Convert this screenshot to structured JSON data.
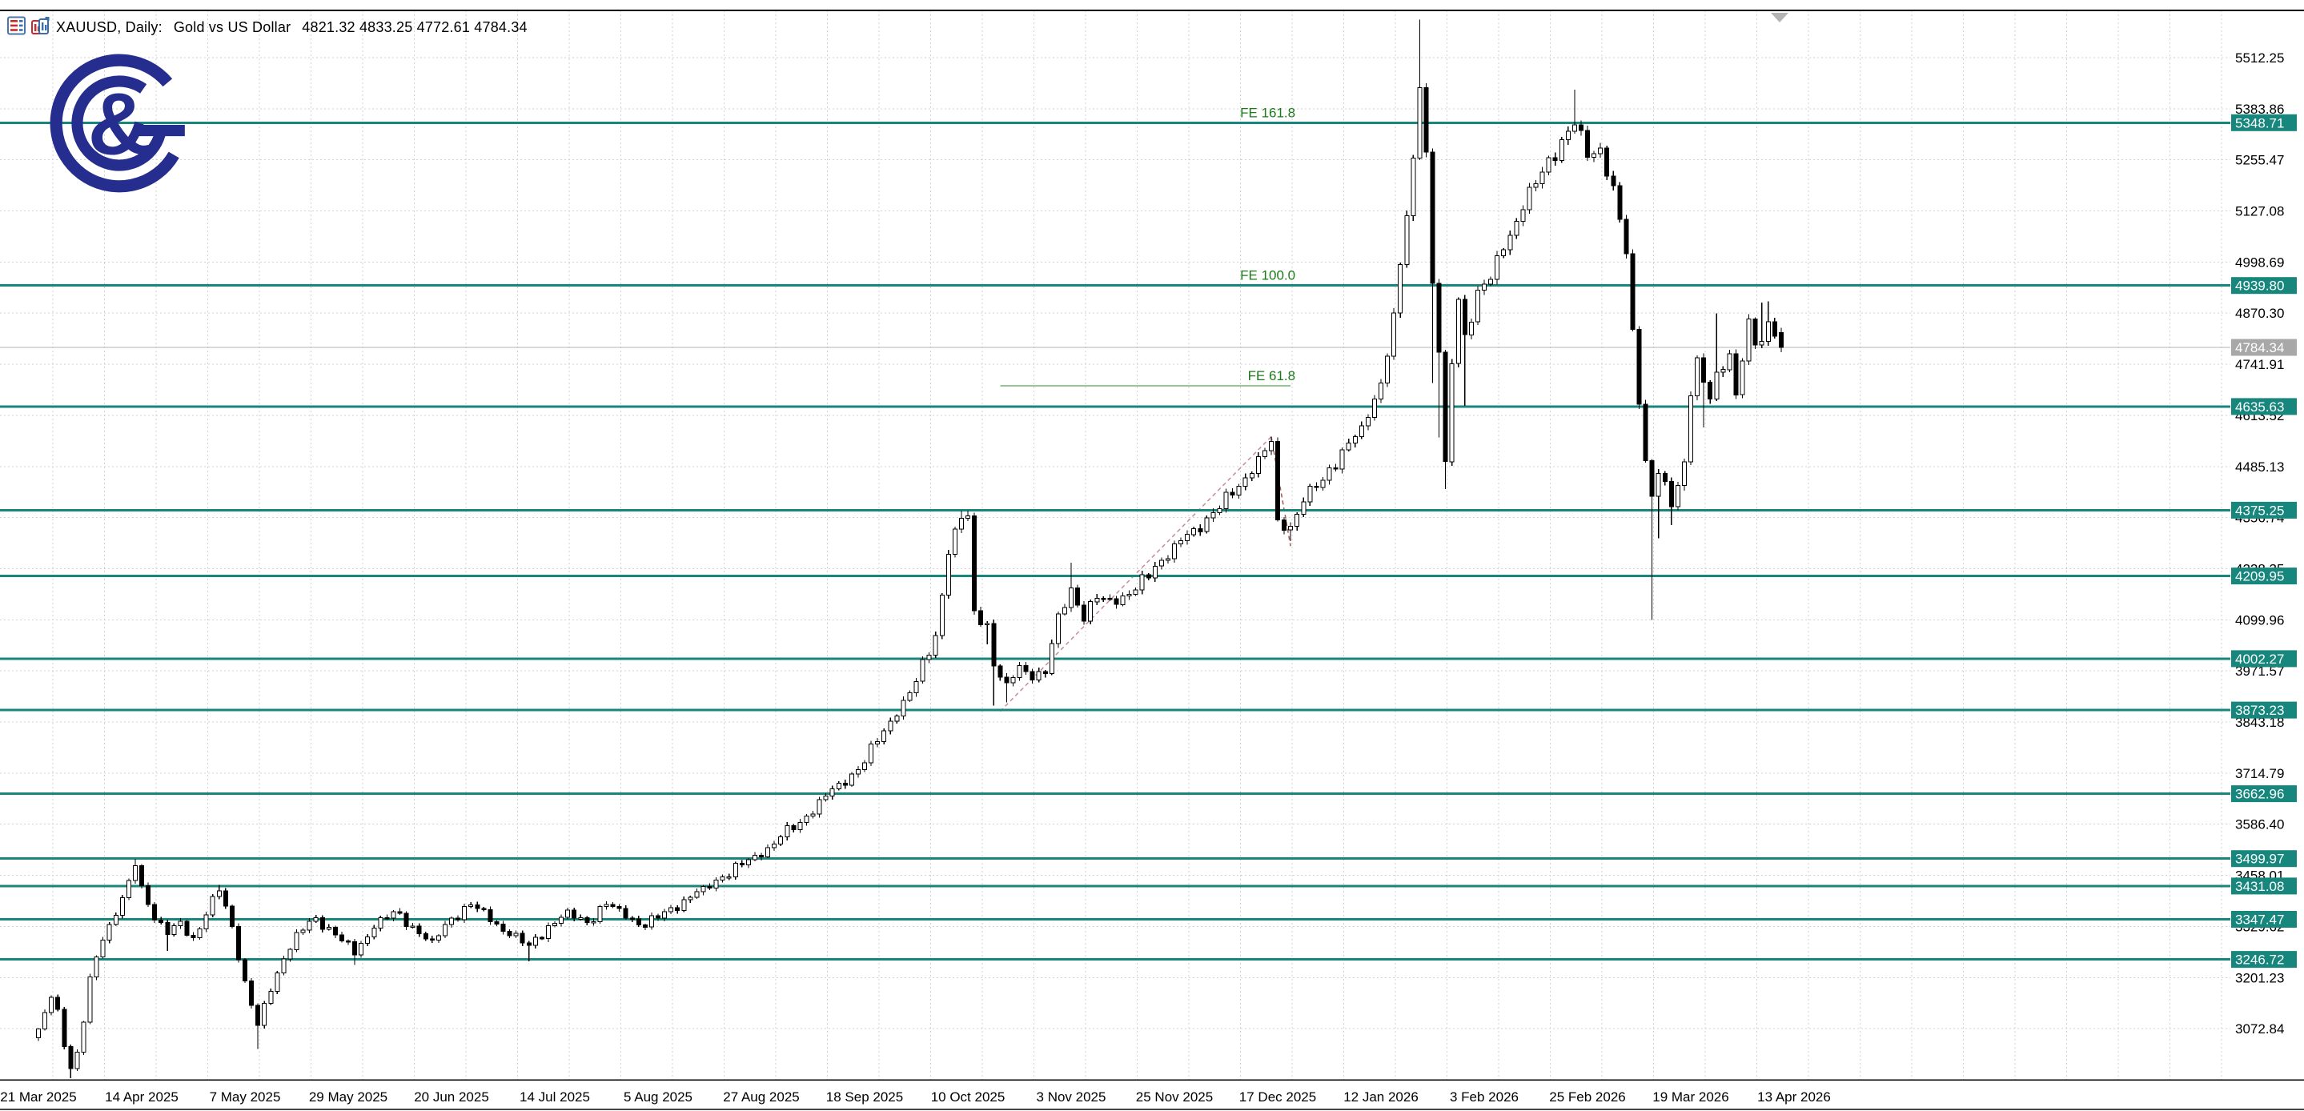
{
  "window": {
    "title_symbol": "XAUUSD, Daily:",
    "title_description": "Gold vs US Dollar",
    "title_ohlc": "4821.32 4833.25 4772.61 4784.34",
    "icons": [
      "market-watch-icon",
      "chart-window-icon"
    ],
    "logo_text": "G&",
    "shift_marker": "chart-shift-triangle"
  },
  "colors": {
    "background": "#ffffff",
    "grid": "#d2d2d2",
    "candle_bull_fill": "#ffffff",
    "candle_bear_fill": "#000000",
    "candle_outline": "#000000",
    "horizontal_line": "#17867c",
    "level_label_bg": "#17867c",
    "level_label_text": "#ffffff",
    "current_price_bg": "#a8a8a8",
    "current_price_line": "#b4b4b4",
    "axis_text": "#000000",
    "fib_label_text": "#1a7a1a",
    "fib_level_line": "#2e8b2e",
    "fib_trend_dash_rise": "#c9899f",
    "fib_trend_dash_fall": "#a85454",
    "logo_navy": "#252e8e",
    "border": "#000000"
  },
  "chart_data": {
    "type": "candlestick",
    "symbol": "XAUUSD",
    "timeframe": "Daily",
    "description": "Gold vs US Dollar",
    "last_ohlc": {
      "open": 4821.32,
      "high": 4833.25,
      "low": 4772.61,
      "close": 4784.34
    },
    "current_price": 4784.34,
    "x_axis": {
      "labels": [
        "21 Mar 2025",
        "14 Apr 2025",
        "7 May 2025",
        "29 May 2025",
        "20 Jun 2025",
        "14 Jul 2025",
        "5 Aug 2025",
        "27 Aug 2025",
        "18 Sep 2025",
        "10 Oct 2025",
        "3 Nov 2025",
        "25 Nov 2025",
        "17 Dec 2025",
        "12 Jan 2026",
        "3 Feb 2026",
        "25 Feb 2026",
        "19 Mar 2026",
        "13 Apr 2026"
      ],
      "bars_per_label": 16
    },
    "y_axis": {
      "ticks": [
        5512.25,
        5383.86,
        5255.47,
        5127.08,
        4998.69,
        4870.3,
        4741.91,
        4613.52,
        4485.13,
        4356.74,
        4228.35,
        4099.96,
        3971.57,
        3843.18,
        3714.79,
        3586.4,
        3458.01,
        3329.62,
        3201.23,
        3072.84
      ],
      "range_top": 5512.25,
      "range_bottom": 3072.84
    },
    "horizontal_level_lines": [
      5348.71,
      4939.8,
      4635.63,
      4375.25,
      4209.95,
      4002.27,
      3873.23,
      3662.96,
      3499.97,
      3431.08,
      3347.47,
      3246.72
    ],
    "fibonacci_expansion": {
      "labels": [
        "FE 161.8",
        "FE 100.0",
        "FE 61.8"
      ],
      "level_prices": [
        5348.71,
        4939.8,
        4688.0
      ],
      "span_bars": [
        149,
        194
      ],
      "anchor_points_bar_price": [
        [
          149,
          3870
        ],
        [
          191,
          4560
        ],
        [
          194,
          4285
        ]
      ]
    },
    "price_path_keypoints": [
      [
        0,
        3070,
        null,
        null
      ],
      [
        1,
        3110,
        null,
        null
      ],
      [
        2,
        3155,
        null,
        null
      ],
      [
        3,
        3120,
        null,
        null
      ],
      [
        4,
        3030,
        null,
        null
      ],
      [
        5,
        2975,
        null,
        2948
      ],
      [
        6,
        3010,
        null,
        null
      ],
      [
        7,
        3090,
        null,
        null
      ],
      [
        8,
        3200,
        null,
        null
      ],
      [
        10,
        3300,
        null,
        null
      ],
      [
        12,
        3360,
        null,
        null
      ],
      [
        14,
        3440,
        null,
        null
      ],
      [
        15,
        3485,
        3499,
        null
      ],
      [
        16,
        3430,
        null,
        null
      ],
      [
        18,
        3350,
        null,
        null
      ],
      [
        20,
        3310,
        null,
        3268
      ],
      [
        22,
        3340,
        null,
        null
      ],
      [
        24,
        3300,
        null,
        null
      ],
      [
        26,
        3360,
        null,
        null
      ],
      [
        28,
        3420,
        3434,
        null
      ],
      [
        30,
        3330,
        null,
        null
      ],
      [
        32,
        3190,
        null,
        null
      ],
      [
        34,
        3080,
        null,
        3022
      ],
      [
        36,
        3170,
        null,
        null
      ],
      [
        38,
        3250,
        null,
        null
      ],
      [
        40,
        3310,
        null,
        null
      ],
      [
        43,
        3350,
        null,
        null
      ],
      [
        46,
        3310,
        null,
        null
      ],
      [
        49,
        3260,
        null,
        3233
      ],
      [
        52,
        3330,
        null,
        null
      ],
      [
        55,
        3365,
        null,
        null
      ],
      [
        58,
        3330,
        null,
        null
      ],
      [
        61,
        3290,
        null,
        null
      ],
      [
        64,
        3350,
        null,
        null
      ],
      [
        67,
        3385,
        null,
        null
      ],
      [
        70,
        3345,
        null,
        null
      ],
      [
        73,
        3310,
        null,
        null
      ],
      [
        76,
        3280,
        null,
        3242
      ],
      [
        79,
        3330,
        null,
        null
      ],
      [
        82,
        3365,
        null,
        null
      ],
      [
        85,
        3340,
        null,
        null
      ],
      [
        88,
        3385,
        null,
        null
      ],
      [
        91,
        3355,
        null,
        null
      ],
      [
        94,
        3330,
        null,
        null
      ],
      [
        97,
        3365,
        null,
        null
      ],
      [
        100,
        3395,
        null,
        null
      ],
      [
        103,
        3425,
        null,
        null
      ],
      [
        106,
        3455,
        null,
        null
      ],
      [
        109,
        3485,
        null,
        null
      ],
      [
        112,
        3510,
        null,
        null
      ],
      [
        115,
        3555,
        null,
        null
      ],
      [
        118,
        3590,
        null,
        null
      ],
      [
        121,
        3645,
        null,
        null
      ],
      [
        124,
        3685,
        null,
        null
      ],
      [
        127,
        3725,
        null,
        null
      ],
      [
        130,
        3795,
        null,
        null
      ],
      [
        133,
        3865,
        null,
        null
      ],
      [
        136,
        3945,
        null,
        null
      ],
      [
        139,
        4060,
        null,
        null
      ],
      [
        141,
        4270,
        null,
        null
      ],
      [
        143,
        4355,
        4374,
        null
      ],
      [
        144,
        4360,
        4374,
        null
      ],
      [
        145,
        4120,
        null,
        null
      ],
      [
        147,
        4090,
        null,
        4038
      ],
      [
        148,
        3985,
        null,
        3884
      ],
      [
        150,
        3935,
        null,
        3892
      ],
      [
        152,
        3985,
        null,
        null
      ],
      [
        154,
        3955,
        null,
        null
      ],
      [
        156,
        3965,
        null,
        null
      ],
      [
        158,
        4110,
        null,
        null
      ],
      [
        160,
        4180,
        4243,
        null
      ],
      [
        162,
        4100,
        null,
        null
      ],
      [
        164,
        4155,
        null,
        null
      ],
      [
        167,
        4145,
        null,
        null
      ],
      [
        170,
        4175,
        null,
        null
      ],
      [
        173,
        4235,
        null,
        null
      ],
      [
        176,
        4285,
        null,
        null
      ],
      [
        179,
        4325,
        null,
        null
      ],
      [
        182,
        4370,
        null,
        null
      ],
      [
        185,
        4415,
        null,
        null
      ],
      [
        188,
        4475,
        null,
        null
      ],
      [
        191,
        4548,
        4560,
        null
      ],
      [
        192,
        4345,
        null,
        null
      ],
      [
        194,
        4335,
        null,
        4298
      ],
      [
        196,
        4400,
        null,
        null
      ],
      [
        199,
        4450,
        null,
        null
      ],
      [
        202,
        4525,
        null,
        null
      ],
      [
        205,
        4580,
        null,
        null
      ],
      [
        208,
        4695,
        null,
        null
      ],
      [
        210,
        4865,
        null,
        null
      ],
      [
        212,
        5115,
        null,
        null
      ],
      [
        213,
        5255,
        null,
        null
      ],
      [
        214,
        5445,
        5608,
        null
      ],
      [
        215,
        5275,
        null,
        null
      ],
      [
        216,
        4945,
        null,
        4695
      ],
      [
        217,
        4775,
        null,
        4558
      ],
      [
        218,
        4490,
        null,
        4428
      ],
      [
        219,
        4745,
        null,
        null
      ],
      [
        220,
        4905,
        null,
        null
      ],
      [
        221,
        4815,
        null,
        4638
      ],
      [
        223,
        4925,
        null,
        null
      ],
      [
        225,
        4955,
        null,
        null
      ],
      [
        227,
        5035,
        null,
        null
      ],
      [
        230,
        5135,
        null,
        null
      ],
      [
        233,
        5225,
        null,
        null
      ],
      [
        236,
        5305,
        null,
        null
      ],
      [
        238,
        5345,
        5432,
        null
      ],
      [
        240,
        5265,
        null,
        null
      ],
      [
        242,
        5285,
        null,
        null
      ],
      [
        244,
        5185,
        null,
        null
      ],
      [
        246,
        5020,
        null,
        null
      ],
      [
        247,
        4825,
        null,
        null
      ],
      [
        248,
        4648,
        null,
        null
      ],
      [
        249,
        4500,
        null,
        null
      ],
      [
        250,
        4410,
        null,
        4100
      ],
      [
        251,
        4470,
        null,
        4305
      ],
      [
        253,
        4385,
        null,
        4338
      ],
      [
        255,
        4495,
        null,
        4424
      ],
      [
        256,
        4670,
        null,
        null
      ],
      [
        257,
        4755,
        null,
        null
      ],
      [
        258,
        4695,
        null,
        4583
      ],
      [
        259,
        4655,
        null,
        null
      ],
      [
        260,
        4715,
        4870,
        null
      ],
      [
        262,
        4770,
        null,
        null
      ],
      [
        263,
        4665,
        null,
        null
      ],
      [
        264,
        4755,
        null,
        null
      ],
      [
        265,
        4849,
        null,
        null
      ],
      [
        266,
        4790,
        null,
        null
      ],
      [
        267,
        4800,
        4897,
        null
      ],
      [
        268,
        4845,
        4900,
        null
      ],
      [
        269,
        4820,
        null,
        null
      ],
      [
        270,
        4784.34,
        null,
        null
      ]
    ]
  }
}
